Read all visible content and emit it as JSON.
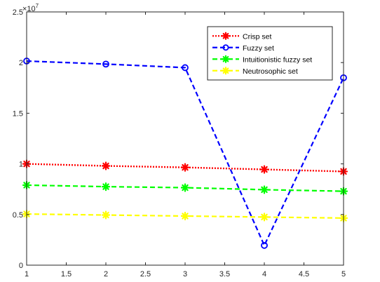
{
  "chart_data": {
    "type": "line",
    "title": "",
    "xlabel": "",
    "ylabel": "",
    "x": [
      1,
      2,
      3,
      4,
      5
    ],
    "xlim": [
      1,
      5
    ],
    "ylim": [
      0,
      25000000
    ],
    "xticks": [
      "1",
      "1.5",
      "2",
      "2.5",
      "3",
      "3.5",
      "4",
      "4.5",
      "5"
    ],
    "yticks": [
      "0",
      "0.5",
      "1",
      "1.5",
      "2",
      "2.5"
    ],
    "y_exponent_base": "×10",
    "y_exponent_power": "7",
    "grid": false,
    "legend_position": "top-right",
    "series": [
      {
        "name": "Crisp set",
        "values": [
          10000000,
          9800000,
          9650000,
          9450000,
          9250000
        ],
        "color": "#ff0000",
        "line": "dotted",
        "marker": "asterisk"
      },
      {
        "name": "Fuzzy set",
        "values": [
          20150000,
          19850000,
          19500000,
          1950000,
          18500000
        ],
        "color": "#0000ff",
        "line": "dashed",
        "marker": "circle"
      },
      {
        "name": "Intuitionistic fuzzy set",
        "values": [
          7900000,
          7750000,
          7650000,
          7450000,
          7300000
        ],
        "color": "#00ff00",
        "line": "dashed",
        "marker": "asterisk"
      },
      {
        "name": "Neutrosophic set",
        "values": [
          5050000,
          4950000,
          4850000,
          4750000,
          4650000
        ],
        "color": "#ffff00",
        "line": "dashed",
        "marker": "asterisk"
      }
    ]
  }
}
